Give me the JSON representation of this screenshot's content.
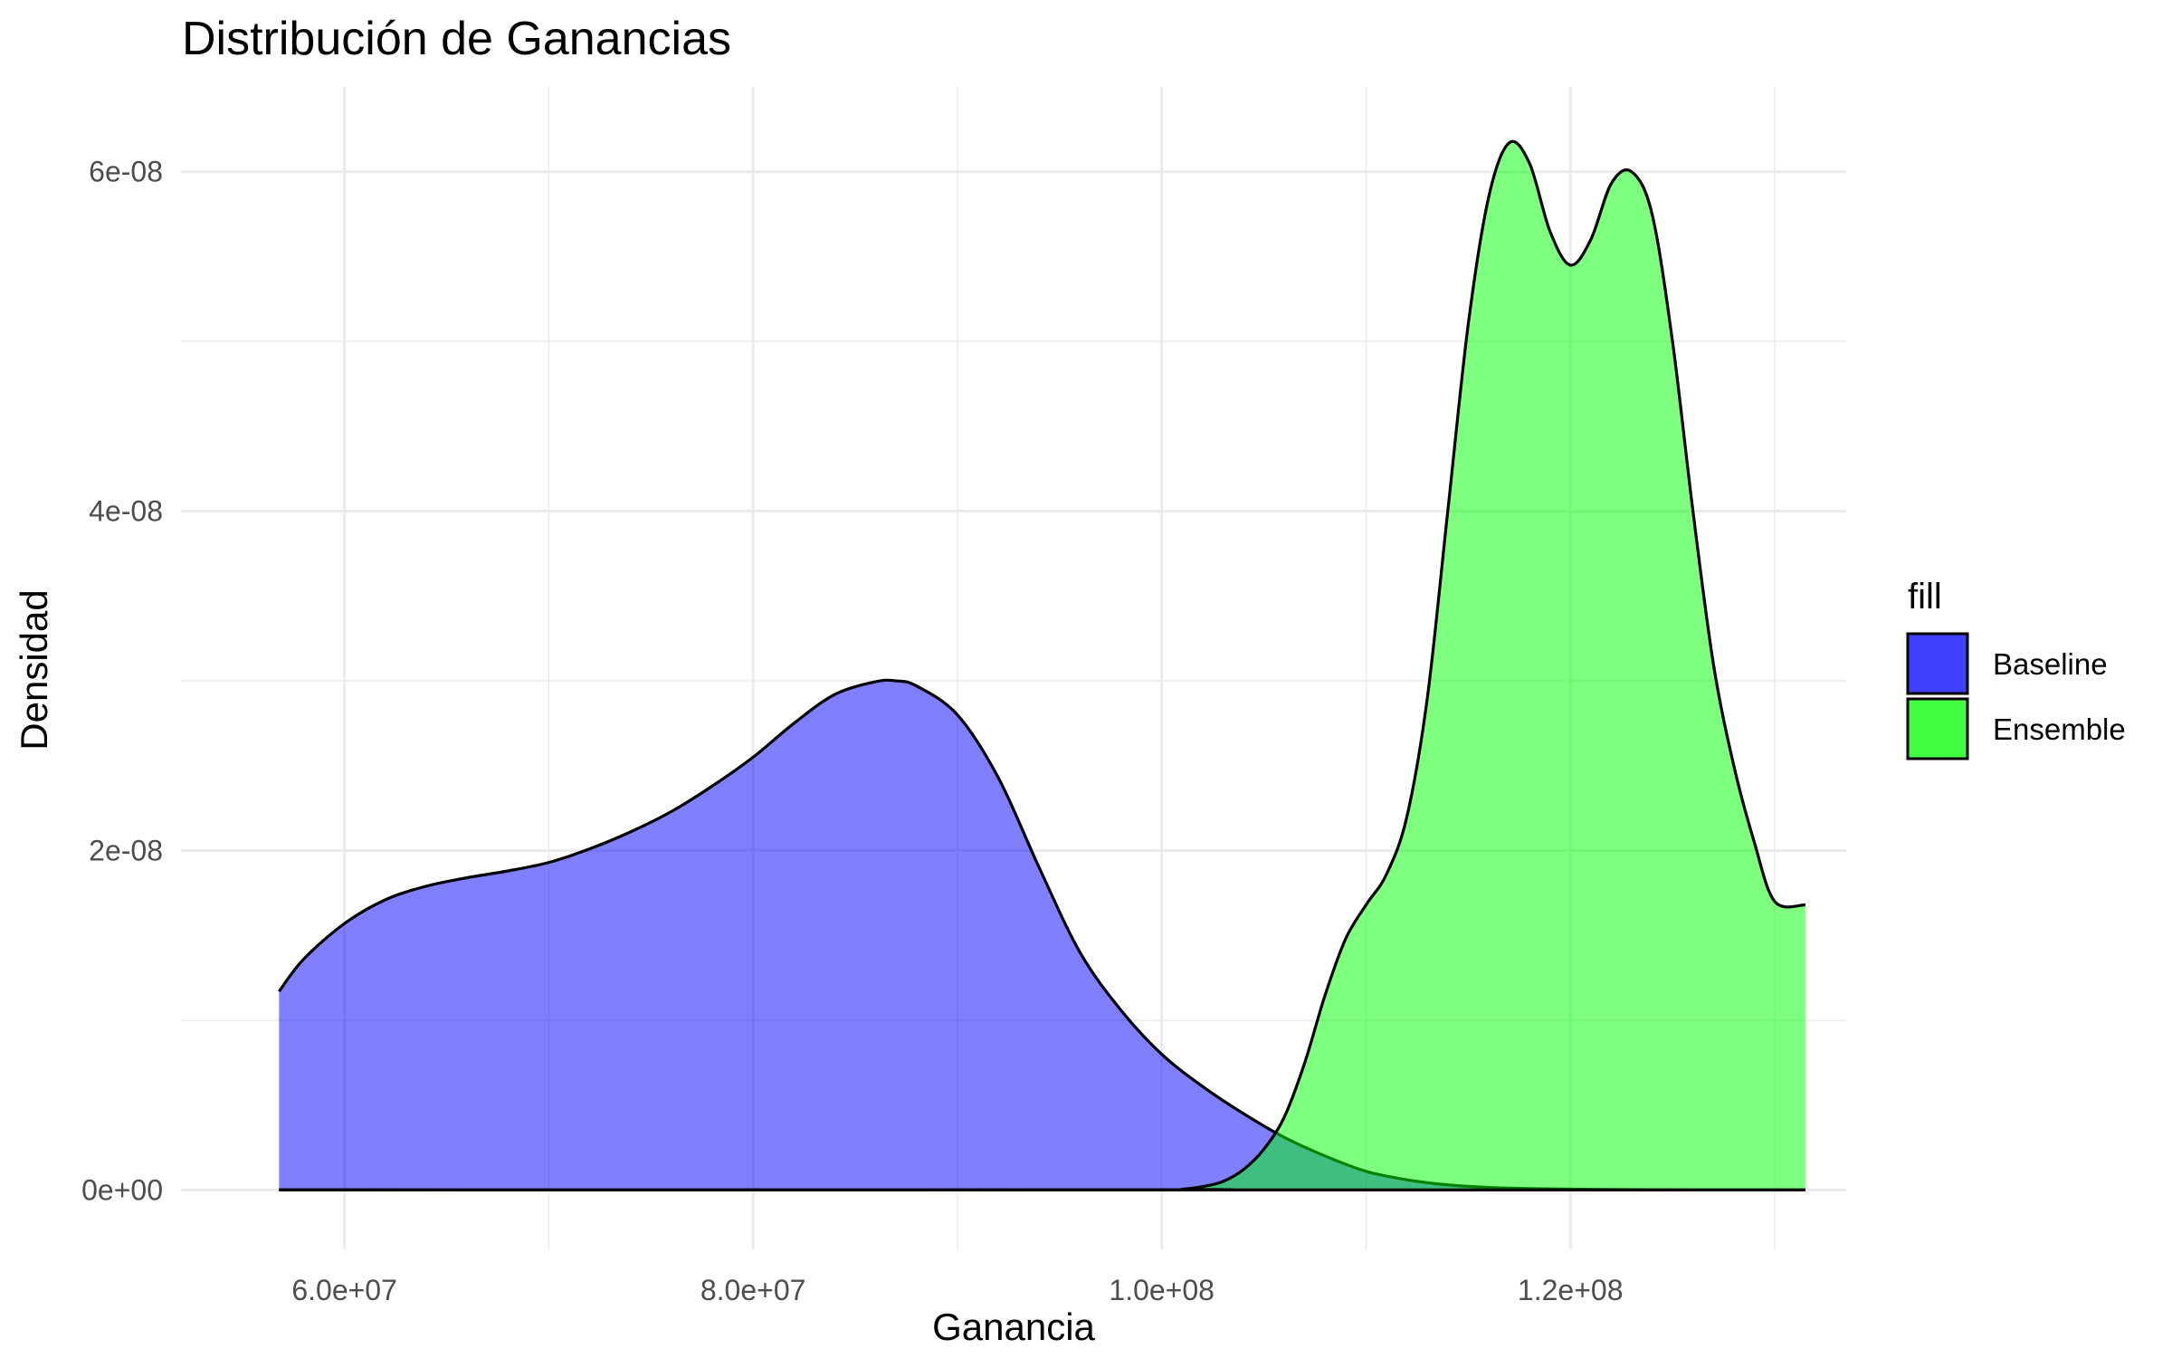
{
  "chart_data": {
    "type": "area",
    "title": "Distribución de Ganancias",
    "xlabel": "Ganancia",
    "ylabel": "Densidad",
    "xlim": [
      52000000,
      133500000
    ],
    "ylim": [
      -3.5e-09,
      6.5e-08
    ],
    "x_ticks": [
      60000000,
      80000000,
      100000000,
      120000000
    ],
    "x_tick_labels": [
      "6.0e+07",
      "8.0e+07",
      "1.0e+08",
      "1.2e+08"
    ],
    "y_ticks": [
      0,
      2e-08,
      4e-08,
      6e-08
    ],
    "y_tick_labels": [
      "0e+00",
      "2e-08",
      "4e-08",
      "6e-08"
    ],
    "grid": true,
    "legend": {
      "title": "fill",
      "position": "right"
    },
    "series": [
      {
        "name": "Baseline",
        "color": "#0000ff",
        "legend_color": "#4040ff",
        "opacity": 0.5,
        "x": [
          56800000,
          58000000,
          60000000,
          62000000,
          64000000,
          66000000,
          68000000,
          70000000,
          72000000,
          74000000,
          76000000,
          78000000,
          80000000,
          82000000,
          84000000,
          86000000,
          87000000,
          88000000,
          90000000,
          92000000,
          94000000,
          96000000,
          98000000,
          100000000,
          102000000,
          104000000,
          106000000,
          108000000,
          110000000,
          112000000,
          114000000,
          116000000,
          118000000,
          120000000,
          122000000,
          125000000,
          128000000,
          131500000
        ],
        "y": [
          1.17e-08,
          1.36e-08,
          1.57e-08,
          1.71e-08,
          1.79e-08,
          1.84e-08,
          1.88e-08,
          1.93e-08,
          2.01e-08,
          2.11e-08,
          2.23e-08,
          2.38e-08,
          2.55e-08,
          2.75e-08,
          2.92e-08,
          2.995e-08,
          3e-08,
          2.97e-08,
          2.8e-08,
          2.43e-08,
          1.9e-08,
          1.4e-08,
          1.06e-08,
          8e-09,
          6.1e-09,
          4.5e-09,
          3.1e-09,
          2e-09,
          1.1e-09,
          6e-10,
          3e-10,
          1.5e-10,
          8e-11,
          5e-11,
          3e-11,
          1e-11,
          0,
          0
        ]
      },
      {
        "name": "Ensemble",
        "color": "#00ff00",
        "legend_color": "#40ff40",
        "opacity": 0.5,
        "x": [
          56800000,
          100000000,
          101000000,
          102000000,
          103000000,
          104000000,
          105000000,
          106000000,
          107000000,
          108000000,
          109000000,
          110000000,
          111000000,
          112000000,
          113000000,
          114000000,
          115000000,
          116000000,
          117000000,
          118000000,
          119000000,
          120000000,
          121000000,
          122000000,
          123000000,
          124000000,
          125000000,
          126000000,
          127000000,
          128000000,
          129000000,
          130000000,
          131500000
        ],
        "y": [
          0,
          0,
          5e-11,
          2e-10,
          5e-10,
          1.2e-09,
          2.4e-09,
          4.3e-09,
          7.5e-09,
          1.15e-08,
          1.48e-08,
          1.68e-08,
          1.86e-08,
          2.2e-08,
          2.9e-08,
          4e-08,
          5.1e-08,
          5.85e-08,
          6.17e-08,
          6.05e-08,
          5.65e-08,
          5.45e-08,
          5.6e-08,
          5.93e-08,
          6e-08,
          5.75e-08,
          5e-08,
          4e-08,
          3.1e-08,
          2.5e-08,
          2.05e-08,
          1.7e-08,
          1.68e-08
        ]
      }
    ]
  }
}
